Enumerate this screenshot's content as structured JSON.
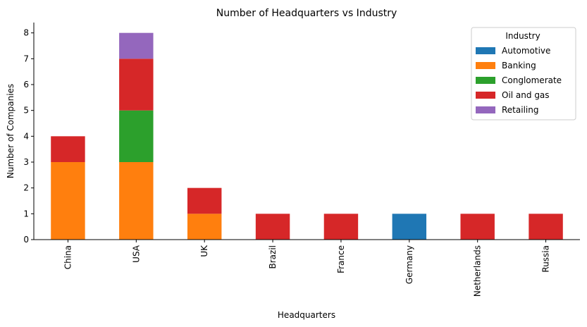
{
  "chart_data": {
    "type": "bar",
    "stacked": true,
    "title": "Number of Headquarters vs Industry",
    "xlabel": "Headquarters",
    "ylabel": "Number of Companies",
    "categories": [
      "China",
      "USA",
      "UK",
      "Brazil",
      "France",
      "Germany",
      "Netherlands",
      "Russia"
    ],
    "ylim": [
      0,
      8.4
    ],
    "yticks": [
      0,
      1,
      2,
      3,
      4,
      5,
      6,
      7,
      8
    ],
    "grid": false,
    "legend": {
      "title": "Industry",
      "placement": "top-right"
    },
    "series": [
      {
        "name": "Automotive",
        "color": "#1f77b4",
        "values": [
          0,
          0,
          0,
          0,
          0,
          1,
          0,
          0
        ]
      },
      {
        "name": "Banking",
        "color": "#ff7f0e",
        "values": [
          3,
          3,
          1,
          0,
          0,
          0,
          0,
          0
        ]
      },
      {
        "name": "Conglomerate",
        "color": "#2ca02c",
        "values": [
          0,
          2,
          0,
          0,
          0,
          0,
          0,
          0
        ]
      },
      {
        "name": "Oil and gas",
        "color": "#d62728",
        "values": [
          1,
          2,
          1,
          1,
          1,
          0,
          1,
          1
        ]
      },
      {
        "name": "Retailing",
        "color": "#9467bd",
        "values": [
          0,
          1,
          0,
          0,
          0,
          0,
          0,
          0
        ]
      }
    ]
  }
}
